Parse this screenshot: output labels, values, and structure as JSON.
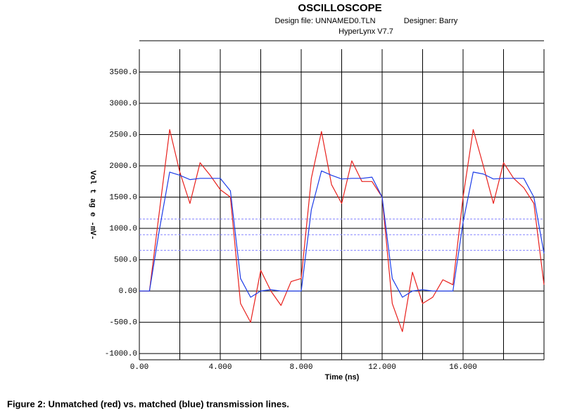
{
  "chart_data": {
    "type": "line",
    "title": "OSCILLOSCOPE",
    "subtitle": [
      "Design file: UNNAMED0.TLN",
      "Designer: Barry",
      "HyperLynx V7.7"
    ],
    "xlabel": "Time  (ns)",
    "ylabel": "Vol t ag e -mV-",
    "caption": "Figure 2: Unmatched (red) vs. matched (blue) transmission lines.",
    "x": [
      0,
      0.5,
      1,
      1.5,
      2,
      2.5,
      3,
      3.5,
      4,
      4.5,
      5,
      5.5,
      6,
      6.5,
      7,
      7.5,
      8,
      8.5,
      9,
      9.5,
      10,
      10.5,
      11,
      11.5,
      12,
      12.5,
      13,
      13.5,
      14,
      14.5,
      15,
      15.5,
      16,
      16.5,
      17,
      17.5,
      18,
      18.5,
      19,
      19.5,
      20
    ],
    "series": [
      {
        "color": "#e8201c",
        "values": [
          0,
          0,
          1300,
          2580,
          1900,
          1400,
          2050,
          1850,
          1620,
          1500,
          -200,
          -500,
          330,
          0,
          -230,
          150,
          200,
          1800,
          2550,
          1700,
          1400,
          2080,
          1750,
          1750,
          1500,
          -200,
          -650,
          300,
          -200,
          -100,
          180,
          100,
          1500,
          2580,
          2000,
          1400,
          2050,
          1800,
          1650,
          1400,
          100
        ]
      },
      {
        "color": "#1c3ce8",
        "values": [
          0,
          0,
          1000,
          1900,
          1850,
          1780,
          1800,
          1800,
          1800,
          1600,
          200,
          -100,
          0,
          20,
          0,
          0,
          0,
          1300,
          1920,
          1850,
          1790,
          1800,
          1800,
          1820,
          1500,
          200,
          -100,
          0,
          20,
          0,
          0,
          0,
          1100,
          1900,
          1870,
          1790,
          1800,
          1800,
          1800,
          1500,
          600
        ]
      }
    ],
    "xlim": [
      0,
      20
    ],
    "ylim": [
      -1100,
      4000
    ],
    "xticks": [
      {
        "value": 0,
        "label": "0.00"
      },
      {
        "value": 4,
        "label": "4.000"
      },
      {
        "value": 8,
        "label": "8.000"
      },
      {
        "value": 12,
        "label": "12.000"
      },
      {
        "value": 16,
        "label": "16.000"
      }
    ],
    "xminor": [
      2,
      6,
      10,
      14,
      18,
      20
    ],
    "yticks": [
      {
        "value": -1000,
        "label": "-1000.0"
      },
      {
        "value": -500,
        "label": "-500.0"
      },
      {
        "value": 0,
        "label": "0.00"
      },
      {
        "value": 500,
        "label": "500.0"
      },
      {
        "value": 1000,
        "label": "1000.0"
      },
      {
        "value": 1500,
        "label": "1500.0"
      },
      {
        "value": 2000,
        "label": "2000.0"
      },
      {
        "value": 2500,
        "label": "2500.0"
      },
      {
        "value": 3000,
        "label": "3000.0"
      },
      {
        "value": 3500,
        "label": "3500.0"
      }
    ],
    "threshold_lines": [
      1150,
      900,
      650
    ],
    "threshold_color": "#8080ff",
    "grid": true
  }
}
